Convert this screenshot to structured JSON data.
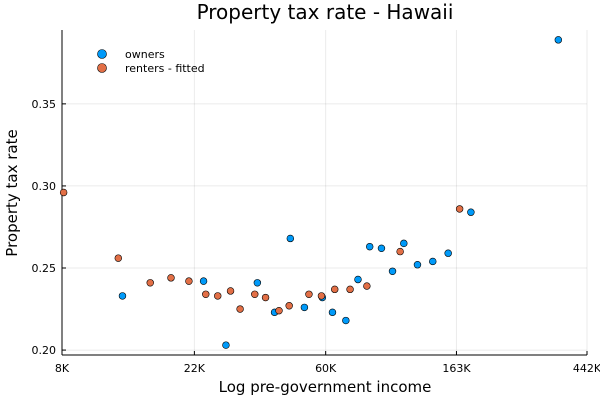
{
  "chart_data": {
    "type": "scatter",
    "title": "Property tax rate - Hawaii",
    "xlabel": "Log pre-government income",
    "ylabel": "Property tax rate",
    "x_scale": "log",
    "xlim": [
      8000,
      442000
    ],
    "ylim": [
      0.197,
      0.395
    ],
    "x_ticks": [
      {
        "value": 8000,
        "label": "8K"
      },
      {
        "value": 22000,
        "label": "22K"
      },
      {
        "value": 60000,
        "label": "60K"
      },
      {
        "value": 163000,
        "label": "163K"
      },
      {
        "value": 442000,
        "label": "442K"
      }
    ],
    "y_ticks": [
      {
        "value": 0.2,
        "label": "0.20"
      },
      {
        "value": 0.25,
        "label": "0.25"
      },
      {
        "value": 0.3,
        "label": "0.30"
      },
      {
        "value": 0.35,
        "label": "0.35"
      }
    ],
    "grid": true,
    "legend_position": "top-left",
    "series": [
      {
        "name": "owners",
        "color": "#009af9",
        "points": [
          {
            "x": 12700,
            "y": 0.233
          },
          {
            "x": 23600,
            "y": 0.242
          },
          {
            "x": 28000,
            "y": 0.203
          },
          {
            "x": 35600,
            "y": 0.241
          },
          {
            "x": 40600,
            "y": 0.223
          },
          {
            "x": 45800,
            "y": 0.268
          },
          {
            "x": 51000,
            "y": 0.226
          },
          {
            "x": 58500,
            "y": 0.232
          },
          {
            "x": 63200,
            "y": 0.223
          },
          {
            "x": 70000,
            "y": 0.218
          },
          {
            "x": 76800,
            "y": 0.243
          },
          {
            "x": 84000,
            "y": 0.263
          },
          {
            "x": 91900,
            "y": 0.262
          },
          {
            "x": 100000,
            "y": 0.248
          },
          {
            "x": 109000,
            "y": 0.265
          },
          {
            "x": 121000,
            "y": 0.252
          },
          {
            "x": 136000,
            "y": 0.254
          },
          {
            "x": 153000,
            "y": 0.259
          },
          {
            "x": 182000,
            "y": 0.284
          },
          {
            "x": 355000,
            "y": 0.389
          }
        ]
      },
      {
        "name": "renters - fitted",
        "color": "#e26f46",
        "points": [
          {
            "x": 8100,
            "y": 0.296
          },
          {
            "x": 12300,
            "y": 0.256
          },
          {
            "x": 15700,
            "y": 0.241
          },
          {
            "x": 18400,
            "y": 0.244
          },
          {
            "x": 21100,
            "y": 0.242
          },
          {
            "x": 24000,
            "y": 0.234
          },
          {
            "x": 26300,
            "y": 0.233
          },
          {
            "x": 29000,
            "y": 0.236
          },
          {
            "x": 31200,
            "y": 0.225
          },
          {
            "x": 34900,
            "y": 0.234
          },
          {
            "x": 37900,
            "y": 0.232
          },
          {
            "x": 42000,
            "y": 0.224
          },
          {
            "x": 45400,
            "y": 0.227
          },
          {
            "x": 52800,
            "y": 0.234
          },
          {
            "x": 58100,
            "y": 0.233
          },
          {
            "x": 64300,
            "y": 0.237
          },
          {
            "x": 72300,
            "y": 0.237
          },
          {
            "x": 82200,
            "y": 0.239
          },
          {
            "x": 106000,
            "y": 0.26
          },
          {
            "x": 167000,
            "y": 0.286
          }
        ]
      }
    ]
  }
}
